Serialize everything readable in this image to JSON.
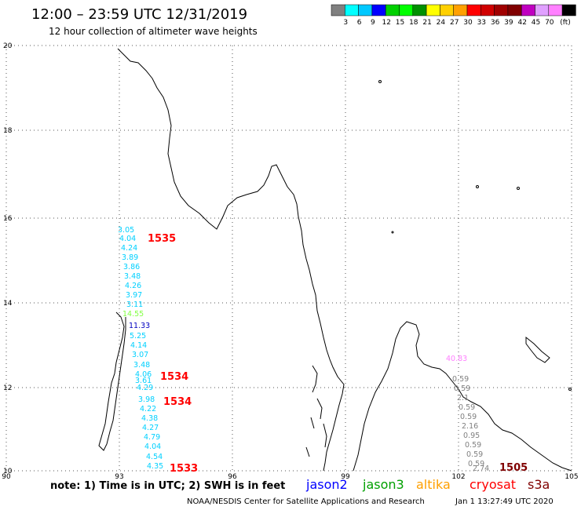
{
  "title": "12:00 – 23:59 UTC 12/31/2019",
  "subtitle": "12 hour collection of altimeter wave heights",
  "scale": {
    "colors": [
      "#808080",
      "#00ffff",
      "#00c8ff",
      "#0000ff",
      "#00d000",
      "#00ff00",
      "#009000",
      "#ffff00",
      "#ffd000",
      "#ffa000",
      "#ff0000",
      "#d00000",
      "#a00000",
      "#800000",
      "#c000c0",
      "#e0a0ff",
      "#ff80ff",
      "#000000"
    ],
    "labels": [
      "3",
      "6",
      "9",
      "12",
      "15",
      "18",
      "21",
      "24",
      "27",
      "30",
      "33",
      "36",
      "39",
      "42",
      "45",
      "70"
    ],
    "unit": "(ft)"
  },
  "lon_labels": [
    "90",
    "93",
    "96",
    "99",
    "102",
    "105"
  ],
  "lat_labels": [
    "20",
    "18",
    "16",
    "14",
    "12",
    "10"
  ],
  "tracks": [
    {
      "color": "#00d0ff",
      "values": [
        "3.05",
        "4.04",
        "4.24",
        "3.89",
        "3.86",
        "3.48",
        "4.26",
        "3.97",
        "3.11",
        "14.55",
        "11.33",
        "5.25",
        "4.14",
        "3.07",
        "3.48",
        "4.06",
        "3.61",
        "4.29",
        "3.98",
        "4.22",
        "4.38",
        "4.27",
        "4.79",
        "4.04",
        "4.54",
        "4.35"
      ]
    },
    {
      "color": "#808080",
      "values": [
        "40.83",
        "0.59",
        "0.59",
        "2.1",
        "0.59",
        "0.59",
        "2.16",
        "0.95",
        "0.59",
        "0.59",
        "0.59",
        "2.74"
      ]
    }
  ],
  "time_labels": [
    "1535",
    "1534",
    "1534",
    "1533",
    "1505"
  ],
  "note": "note: 1) Time is in UTC; 2) SWH is in feet",
  "satellites": [
    {
      "name": "jason2",
      "color": "#0000ff"
    },
    {
      "name": "jason3",
      "color": "#00a000"
    },
    {
      "name": "altika",
      "color": "#ffa000"
    },
    {
      "name": "cryosat",
      "color": "#ff0000"
    },
    {
      "name": "s3a",
      "color": "#800000"
    }
  ],
  "footer_left": "NOAA/NESDIS Center for Satellite Applications and Research",
  "footer_right": "Jan  1 13:27:49 UTC 2020"
}
